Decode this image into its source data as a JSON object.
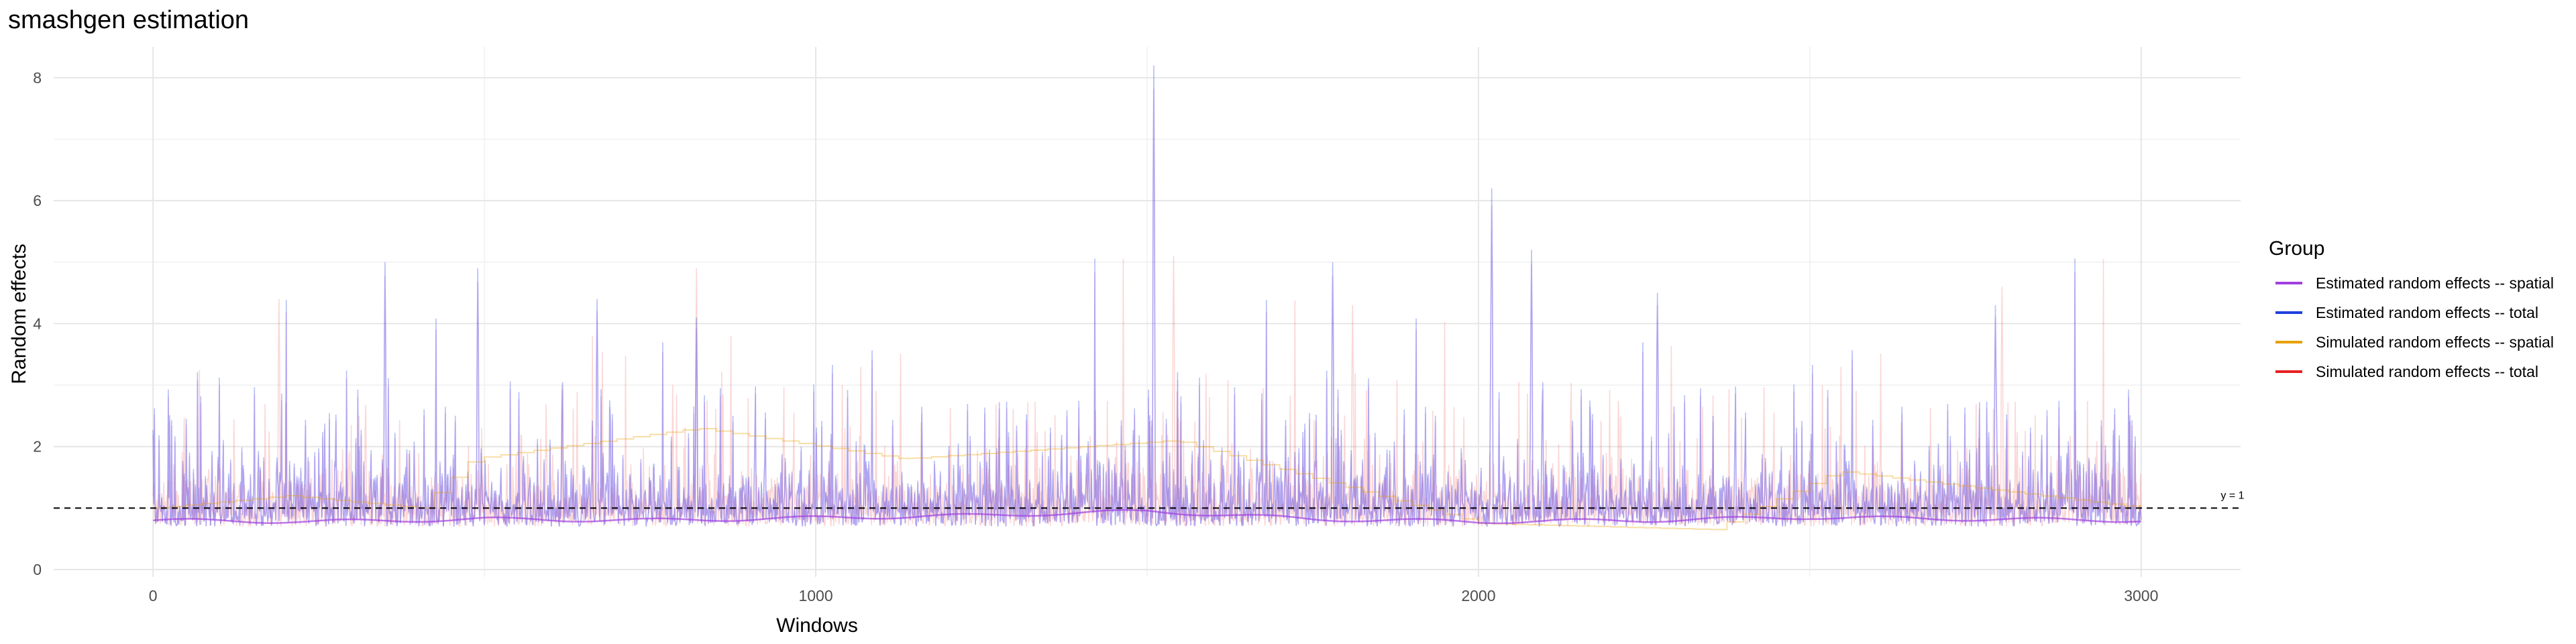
{
  "chart_data": {
    "type": "line",
    "title": "smashgen estimation",
    "xlabel": "Windows",
    "ylabel": "Random effects",
    "xlim": [
      -150,
      3150
    ],
    "ylim": [
      -0.12,
      8.5
    ],
    "x_ticks": [
      0,
      1000,
      2000,
      3000
    ],
    "x_tick_labels": [
      "0",
      "1000",
      "2000",
      "3000"
    ],
    "y_ticks": [
      0,
      2,
      4,
      6,
      8
    ],
    "y_tick_labels": [
      "0",
      "2",
      "4",
      "6",
      "8"
    ],
    "grid": true,
    "legend": {
      "title": "Group",
      "position": "right",
      "entries": [
        {
          "label": "Estimated random effects -- spatial",
          "color": "#A040E0"
        },
        {
          "label": "Estimated random effects -- total",
          "color": "#1F3FE0"
        },
        {
          "label": "Simulated random effects -- spatial",
          "color": "#E8A000"
        },
        {
          "label": "Simulated random effects -- total",
          "color": "#E82020"
        }
      ]
    },
    "reference_line": {
      "y": 1,
      "label": "y = 1",
      "style": "dashed"
    },
    "n_windows": 3000,
    "series": [
      {
        "name": "Estimated random effects -- spatial",
        "color": "#A040E0",
        "x": [
          0,
          250,
          500,
          750,
          1000,
          1250,
          1500,
          1750,
          2000,
          2250,
          2500,
          2750,
          3000
        ],
        "values": [
          0.8,
          0.78,
          0.82,
          0.8,
          0.84,
          0.88,
          0.95,
          0.82,
          0.78,
          0.8,
          0.85,
          0.82,
          0.8
        ]
      },
      {
        "name": "Estimated random effects -- total",
        "color": "#1F3FE0",
        "x": [
          350,
          490,
          670,
          820,
          1510,
          1780,
          2020,
          2080,
          2270,
          2780
        ],
        "values": [
          5.0,
          4.9,
          4.4,
          4.1,
          8.2,
          5.0,
          6.2,
          5.2,
          4.5,
          4.3
        ]
      },
      {
        "name": "Simulated random effects -- spatial",
        "color": "#E8A000",
        "x": [
          0,
          200,
          400,
          480,
          820,
          1130,
          1540,
          2000,
          2350,
          2540,
          3000
        ],
        "values": [
          1.0,
          1.2,
          1.0,
          1.8,
          2.3,
          1.8,
          2.1,
          0.75,
          0.65,
          1.6,
          1.0
        ]
      },
      {
        "name": "Simulated random effects -- total",
        "color": "#E82020",
        "x": [
          190,
          820,
          1540,
          1810,
          2790
        ],
        "values": [
          4.4,
          4.9,
          5.1,
          4.3,
          4.6
        ]
      }
    ]
  }
}
